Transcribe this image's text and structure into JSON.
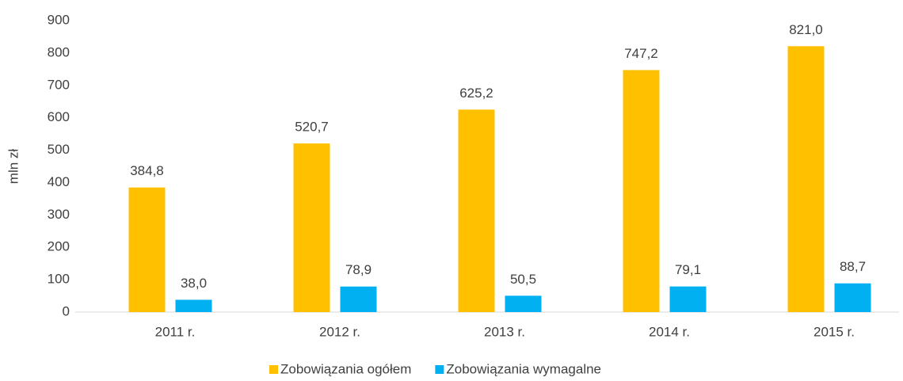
{
  "chart_data": {
    "type": "bar",
    "y_label": "mln zł",
    "categories": [
      "2011 r.",
      "2012 r.",
      "2013 r.",
      "2014 r.",
      "2015 r."
    ],
    "series": [
      {
        "name": "Zobowiązania ogółem",
        "color": "#ffc000",
        "values": [
          384.8,
          520.7,
          625.2,
          747.2,
          821.0
        ],
        "value_labels": [
          "384,8",
          "520,7",
          "625,2",
          "747,2",
          "821,0"
        ]
      },
      {
        "name": "Zobowiązania wymagalne",
        "color": "#00b0f0",
        "values": [
          38.0,
          78.9,
          50.5,
          79.1,
          88.7
        ],
        "value_labels": [
          "38,0",
          "78,9",
          "50,5",
          "79,1",
          "88,7"
        ]
      }
    ],
    "ylim": [
      0,
      900
    ],
    "yticks": [
      0,
      100,
      200,
      300,
      400,
      500,
      600,
      700,
      800,
      900
    ],
    "legend": "bottom"
  }
}
